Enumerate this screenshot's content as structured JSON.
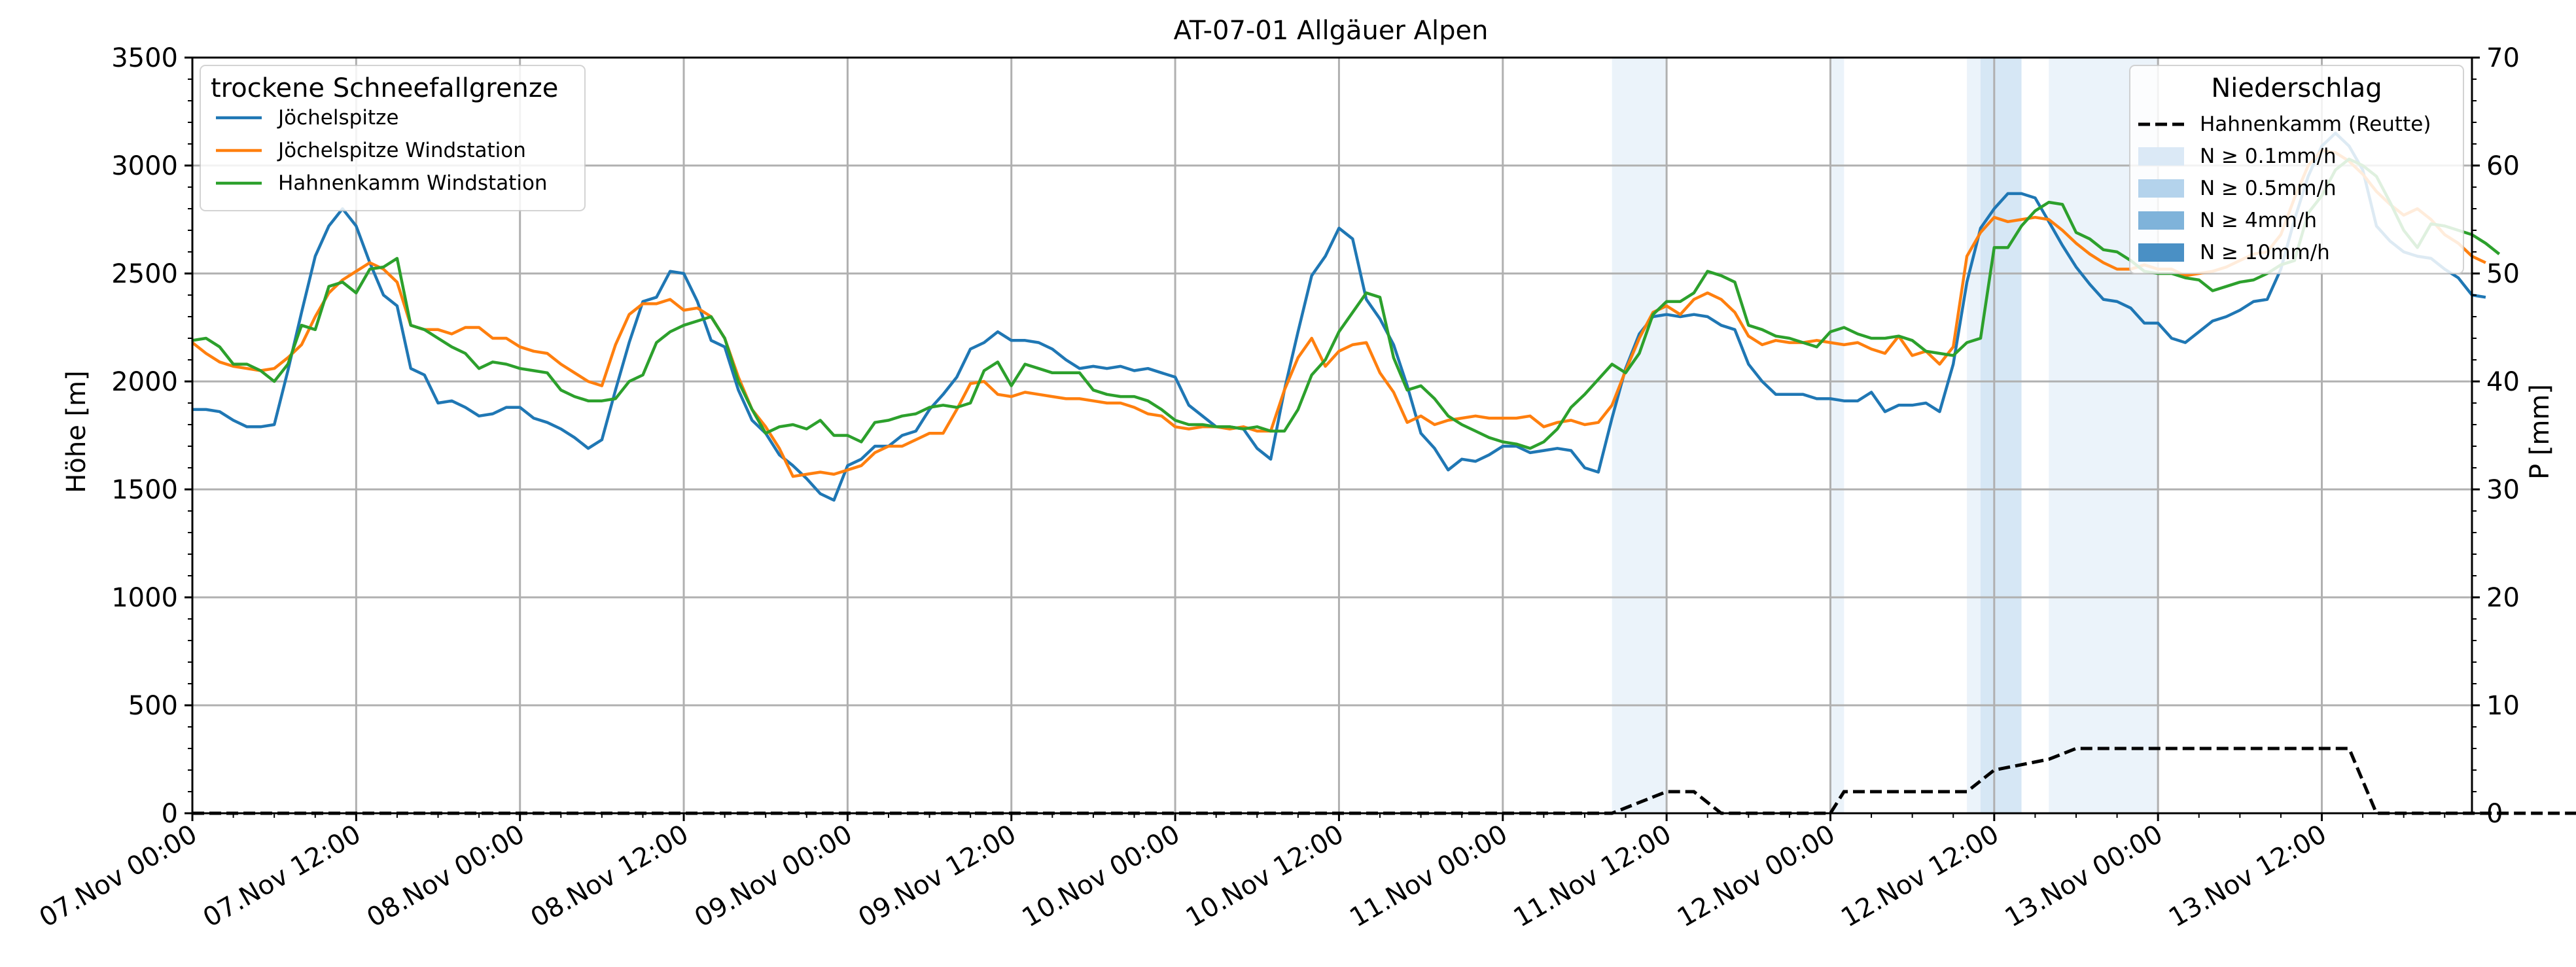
{
  "chart_data": {
    "type": "line",
    "title": "AT-07-01 Allgäuer Alpen",
    "ylabel": "Höhe [m]",
    "y2label": "P [mm]",
    "ylim": [
      0,
      3500
    ],
    "y2lim": [
      0,
      70
    ],
    "yticks": [
      0,
      500,
      1000,
      1500,
      2000,
      2500,
      3000,
      3500
    ],
    "y2ticks": [
      0,
      10,
      20,
      30,
      40,
      50,
      60,
      70
    ],
    "x_start": "07.Nov 00:00",
    "x_end": "13.Nov 22:00",
    "xticks": [
      "07.Nov 00:00",
      "07.Nov 12:00",
      "08.Nov 00:00",
      "08.Nov 12:00",
      "09.Nov 00:00",
      "09.Nov 12:00",
      "10.Nov 00:00",
      "10.Nov 12:00",
      "11.Nov 00:00",
      "11.Nov 12:00",
      "12.Nov 00:00",
      "12.Nov 12:00",
      "13.Nov 00:00",
      "13.Nov 12:00"
    ],
    "grid": true,
    "legend_left": {
      "title": "trockene Schneefallgrenze",
      "placement": "top-left",
      "entries": [
        "Jöchelspitze",
        "Jöchelspitze Windstation",
        "Hahnenkamm Windstation"
      ]
    },
    "legend_right": {
      "title": "Niederschlag",
      "placement": "top-right",
      "entries": [
        "Hahnenkamm (Reutte)",
        "N ≥ 0.1mm/h",
        "N ≥ 0.5mm/h",
        "N ≥ 4mm/h",
        "N ≥ 10mm/h"
      ]
    },
    "series_colors": [
      "#1f77b4",
      "#ff7f0e",
      "#2ca02c"
    ],
    "precip_color": "#000000",
    "band_colors": [
      "#dbe9f6",
      "#b4d3ec",
      "#7fb3da",
      "#4a90c5"
    ],
    "series": [
      {
        "name": "Jöchelspitze",
        "hour_step": 1,
        "values": [
          1870,
          1870,
          1860,
          1820,
          1790,
          1790,
          1800,
          2050,
          2320,
          2580,
          2720,
          2800,
          2720,
          2550,
          2400,
          2350,
          2060,
          2030,
          1900,
          1910,
          1880,
          1840,
          1850,
          1880,
          1880,
          1830,
          1810,
          1780,
          1740,
          1690,
          1730,
          1960,
          2180,
          2370,
          2390,
          2510,
          2500,
          2370,
          2190,
          2160,
          1960,
          1820,
          1760,
          1660,
          1610,
          1550,
          1480,
          1450,
          1610,
          1640,
          1700,
          1700,
          1750,
          1770,
          1870,
          1940,
          2020,
          2150,
          2180,
          2230,
          2190,
          2190,
          2180,
          2150,
          2100,
          2060,
          2070,
          2060,
          2070,
          2050,
          2060,
          2040,
          2020,
          1890,
          1840,
          1790,
          1790,
          1780,
          1690,
          1640,
          1960,
          2230,
          2490,
          2580,
          2710,
          2660,
          2380,
          2290,
          2170,
          1980,
          1760,
          1690,
          1590,
          1640,
          1630,
          1660,
          1700,
          1700,
          1670,
          1680,
          1690,
          1680,
          1600,
          1580,
          1830,
          2060,
          2220,
          2300,
          2310,
          2300,
          2310,
          2300,
          2260,
          2240,
          2080,
          2000,
          1940,
          1940,
          1940,
          1920,
          1920,
          1910,
          1910,
          1950,
          1860,
          1890,
          1890,
          1900,
          1860,
          2080,
          2460,
          2710,
          2800,
          2870,
          2870,
          2850,
          2740,
          2630,
          2530,
          2450,
          2380,
          2370,
          2340,
          2270,
          2270,
          2200,
          2180,
          2230,
          2280,
          2300,
          2330,
          2370,
          2380,
          2520,
          2750,
          2950,
          3090,
          3150,
          3090,
          2980,
          2720,
          2650,
          2600,
          2580,
          2570,
          2520,
          2480,
          2400,
          2390
        ]
      },
      {
        "name": "Jöchelspitze Windstation",
        "hour_step": 1,
        "values": [
          2180,
          2130,
          2090,
          2070,
          2060,
          2050,
          2060,
          2110,
          2170,
          2300,
          2410,
          2470,
          2510,
          2550,
          2520,
          2460,
          2260,
          2240,
          2240,
          2220,
          2250,
          2250,
          2200,
          2200,
          2160,
          2140,
          2130,
          2080,
          2040,
          2000,
          1980,
          2170,
          2310,
          2360,
          2360,
          2380,
          2330,
          2340,
          2300,
          2200,
          2020,
          1870,
          1790,
          1690,
          1560,
          1570,
          1580,
          1570,
          1590,
          1610,
          1670,
          1700,
          1700,
          1730,
          1760,
          1760,
          1870,
          1990,
          2000,
          1940,
          1930,
          1950,
          1940,
          1930,
          1920,
          1920,
          1910,
          1900,
          1900,
          1880,
          1850,
          1840,
          1790,
          1780,
          1790,
          1790,
          1780,
          1790,
          1770,
          1770,
          1960,
          2110,
          2200,
          2070,
          2140,
          2170,
          2180,
          2040,
          1950,
          1810,
          1840,
          1800,
          1820,
          1830,
          1840,
          1830,
          1830,
          1830,
          1840,
          1790,
          1810,
          1820,
          1800,
          1810,
          1890,
          2050,
          2200,
          2320,
          2350,
          2310,
          2380,
          2410,
          2380,
          2320,
          2210,
          2170,
          2190,
          2180,
          2180,
          2190,
          2180,
          2170,
          2180,
          2150,
          2130,
          2210,
          2120,
          2140,
          2080,
          2160,
          2580,
          2690,
          2760,
          2740,
          2750,
          2760,
          2750,
          2700,
          2640,
          2590,
          2550,
          2520,
          2520,
          2540,
          2520,
          2520,
          2490,
          2500,
          2510,
          2530,
          2560,
          2590,
          2600,
          2680,
          2850,
          3000,
          3070,
          3060,
          3020,
          2960,
          2880,
          2820,
          2770,
          2800,
          2750,
          2680,
          2640,
          2580,
          2550
        ]
      },
      {
        "name": "Hahnenkamm Windstation",
        "hour_step": 1,
        "values": [
          2190,
          2200,
          2160,
          2080,
          2080,
          2050,
          2000,
          2080,
          2260,
          2240,
          2440,
          2460,
          2410,
          2520,
          2530,
          2570,
          2260,
          2240,
          2200,
          2160,
          2130,
          2060,
          2090,
          2080,
          2060,
          2050,
          2040,
          1960,
          1930,
          1910,
          1910,
          1920,
          2000,
          2030,
          2180,
          2230,
          2260,
          2280,
          2300,
          2200,
          2000,
          1870,
          1760,
          1790,
          1800,
          1780,
          1820,
          1750,
          1750,
          1720,
          1810,
          1820,
          1840,
          1850,
          1880,
          1890,
          1880,
          1900,
          2050,
          2090,
          1980,
          2080,
          2060,
          2040,
          2040,
          2040,
          1960,
          1940,
          1930,
          1930,
          1910,
          1870,
          1820,
          1800,
          1800,
          1790,
          1790,
          1780,
          1790,
          1770,
          1770,
          1870,
          2030,
          2100,
          2230,
          2320,
          2410,
          2390,
          2110,
          1960,
          1980,
          1920,
          1840,
          1800,
          1770,
          1740,
          1720,
          1710,
          1690,
          1720,
          1780,
          1880,
          1940,
          2010,
          2080,
          2040,
          2130,
          2310,
          2370,
          2370,
          2410,
          2510,
          2490,
          2460,
          2260,
          2240,
          2210,
          2200,
          2180,
          2160,
          2230,
          2250,
          2220,
          2200,
          2200,
          2210,
          2190,
          2140,
          2130,
          2120,
          2180,
          2200,
          2620,
          2620,
          2720,
          2790,
          2830,
          2820,
          2690,
          2660,
          2610,
          2600,
          2560,
          2510,
          2500,
          2500,
          2480,
          2470,
          2420,
          2440,
          2460,
          2470,
          2500,
          2540,
          2560,
          2780,
          2860,
          2980,
          3030,
          3000,
          2950,
          2830,
          2700,
          2620,
          2730,
          2720,
          2700,
          2680,
          2640,
          2590
        ]
      }
    ],
    "precipitation": {
      "name": "Hahnenkamm (Reutte)",
      "unit": "mm",
      "points": [
        [
          0,
          0
        ],
        [
          104,
          0
        ],
        [
          108,
          2
        ],
        [
          110,
          2
        ],
        [
          112,
          0
        ],
        [
          120,
          0
        ],
        [
          121,
          2
        ],
        [
          130,
          2
        ],
        [
          132,
          4
        ],
        [
          136,
          5
        ],
        [
          138,
          6
        ],
        [
          144,
          6
        ],
        [
          158,
          6
        ],
        [
          160,
          0
        ],
        [
          200,
          0
        ]
      ]
    },
    "bands": [
      {
        "start": 104,
        "end": 108,
        "level": "N ≥ 0.1mm/h"
      },
      {
        "start": 120,
        "end": 121,
        "level": "N ≥ 0.1mm/h"
      },
      {
        "start": 130,
        "end": 131,
        "level": "N ≥ 0.1mm/h"
      },
      {
        "start": 131,
        "end": 134,
        "level": "N ≥ 0.5mm/h"
      },
      {
        "start": 136,
        "end": 144,
        "level": "N ≥ 0.1mm/h"
      }
    ]
  }
}
